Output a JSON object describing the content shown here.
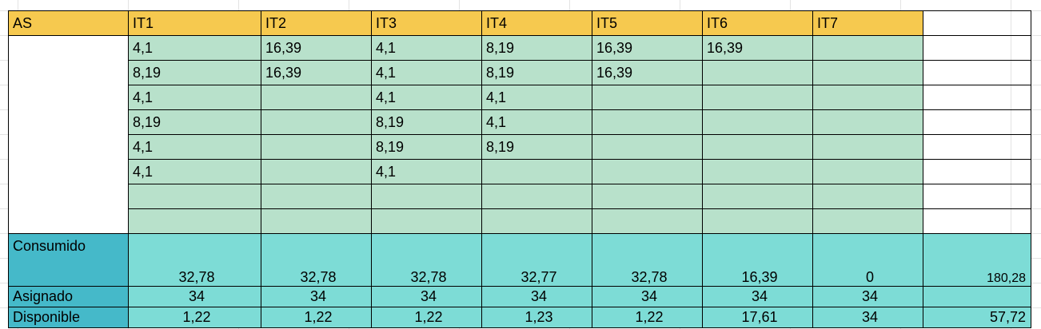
{
  "header": {
    "label": "AS",
    "columns": [
      "IT1",
      "IT2",
      "IT3",
      "IT4",
      "IT5",
      "IT6",
      "IT7"
    ]
  },
  "rows": [
    [
      "4,1",
      "16,39",
      "4,1",
      "8,19",
      "16,39",
      "16,39",
      ""
    ],
    [
      "8,19",
      "16,39",
      "4,1",
      "8,19",
      "16,39",
      "",
      ""
    ],
    [
      "4,1",
      "",
      "4,1",
      "4,1",
      "",
      "",
      ""
    ],
    [
      "8,19",
      "",
      "8,19",
      "4,1",
      "",
      "",
      ""
    ],
    [
      "4,1",
      "",
      "8,19",
      "8,19",
      "",
      "",
      ""
    ],
    [
      "4,1",
      "",
      "4,1",
      "",
      "",
      "",
      ""
    ],
    [
      "",
      "",
      "",
      "",
      "",
      "",
      ""
    ],
    [
      "",
      "",
      "",
      "",
      "",
      "",
      ""
    ]
  ],
  "summary": {
    "consumido": {
      "label": "Consumido",
      "values": [
        "32,78",
        "32,78",
        "32,78",
        "32,77",
        "32,78",
        "16,39",
        "0"
      ],
      "total": "180,28"
    },
    "asignado": {
      "label": "Asignado",
      "values": [
        "34",
        "34",
        "34",
        "34",
        "34",
        "34",
        "34"
      ],
      "total": ""
    },
    "disponible": {
      "label": "Disponible",
      "values": [
        "1,22",
        "1,22",
        "1,22",
        "1,23",
        "1,22",
        "17,61",
        "34"
      ],
      "total": "57,72"
    }
  },
  "colors": {
    "header": "#f6c94f",
    "data": "#b8e1cb",
    "label": "#45b9c9",
    "summary": "#7ddcd6"
  }
}
